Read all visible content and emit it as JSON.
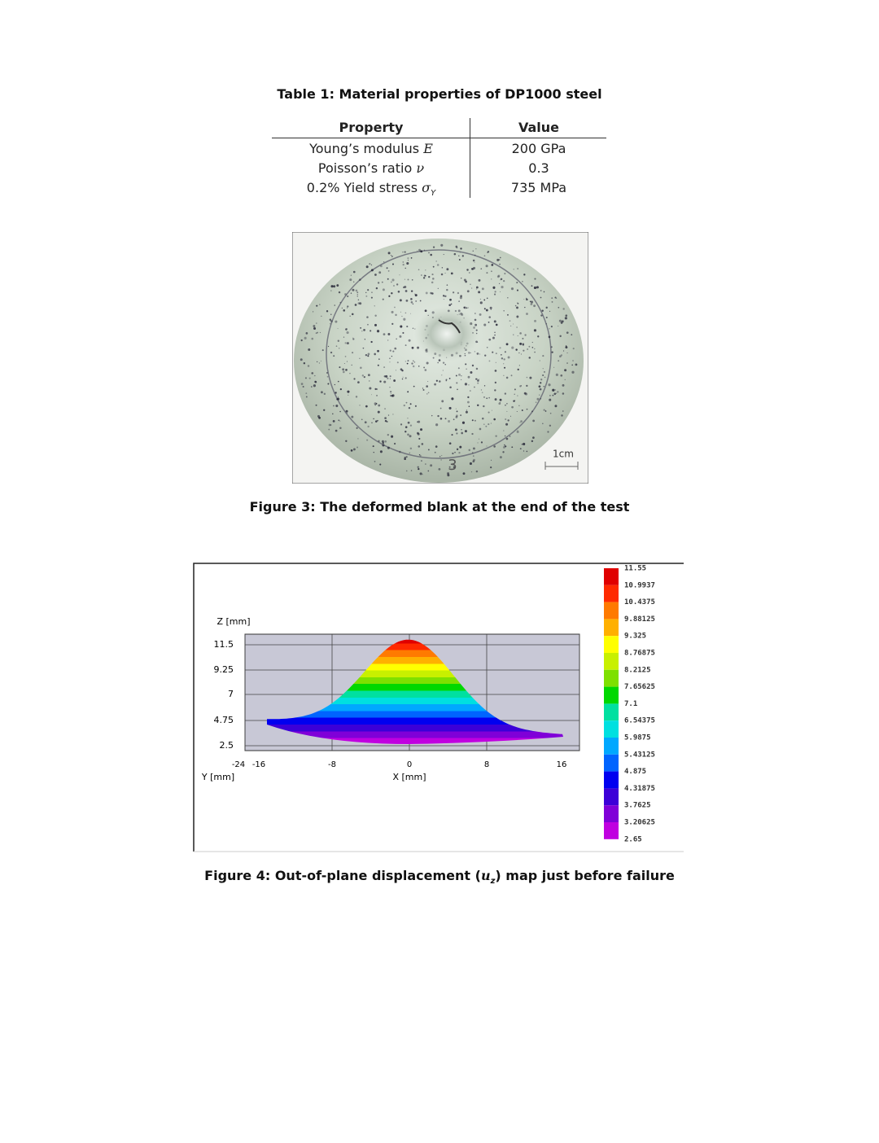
{
  "table": {
    "caption": "Table 1: Material properties of DP1000 steel",
    "header": [
      "Property",
      "Value"
    ],
    "rows": [
      {
        "property": "Young’s modulus",
        "symbol": "E",
        "value": "200 GPa"
      },
      {
        "property": "Poisson’s ratio",
        "symbol": "ν",
        "value": "0.3"
      },
      {
        "property": "0.2% Yield stress",
        "symbol": "σ",
        "subscript": "Y",
        "value": "735 MPa"
      }
    ]
  },
  "figure3": {
    "scale_label": "1cm",
    "marker": "3",
    "caption": "Figure 3: The deformed blank at the end of the test"
  },
  "figure4": {
    "z_axis_label": "Z [mm]",
    "zticks": [
      "11.5",
      "9.25",
      "7",
      "4.75",
      "2.5"
    ],
    "corner_tick": "-24",
    "xticks": [
      "-16",
      "-8",
      "0",
      "8",
      "16"
    ],
    "y_axis_label": "Y [mm]",
    "x_axis_label": "X [mm]",
    "legend": [
      "11.55",
      "10.9937",
      "10.4375",
      "9.88125",
      "9.325",
      "8.76875",
      "8.2125",
      "7.65625",
      "7.1",
      "6.54375",
      "5.9875",
      "5.43125",
      "4.875",
      "4.31875",
      "3.7625",
      "3.20625",
      "2.65"
    ],
    "caption": [
      "Figure 4: Out-of-plane displacement (",
      "u",
      "z",
      ") map just before failure"
    ]
  }
}
